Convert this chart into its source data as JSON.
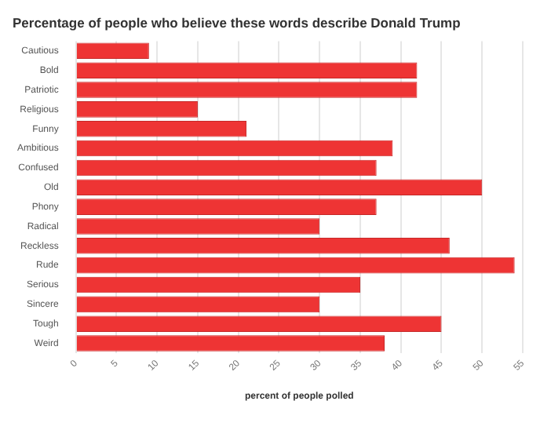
{
  "chart_data": {
    "type": "bar",
    "orientation": "horizontal",
    "title": "Percentage of people who believe these words describe Donald Trump",
    "xlabel": "percent of people polled",
    "categories": [
      "Cautious",
      "Bold",
      "Patriotic",
      "Religious",
      "Funny",
      "Ambitious",
      "Confused",
      "Old",
      "Phony",
      "Radical",
      "Reckless",
      "Rude",
      "Serious",
      "Sincere",
      "Tough",
      "Weird"
    ],
    "values": [
      9,
      42,
      42,
      15,
      21,
      39,
      37,
      50,
      37,
      30,
      46,
      54,
      35,
      30,
      45,
      38
    ],
    "color": "#ee3434",
    "xlim": [
      0,
      55
    ],
    "xticks": [
      0,
      5,
      10,
      15,
      20,
      25,
      30,
      35,
      40,
      45,
      50,
      55
    ],
    "grid": "x"
  }
}
